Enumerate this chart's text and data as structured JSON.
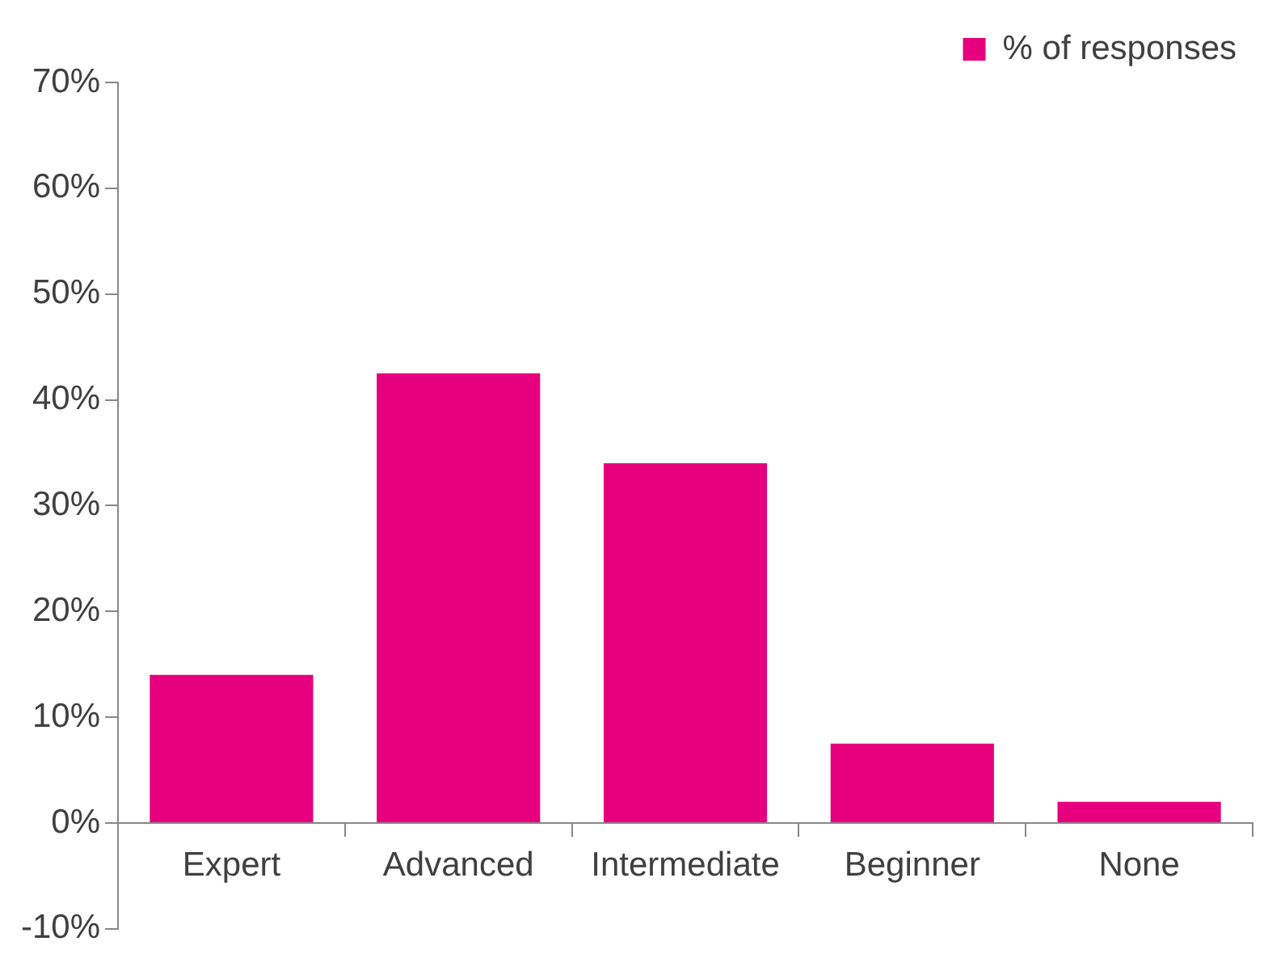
{
  "chart_data": {
    "type": "bar",
    "categories": [
      "Expert",
      "Advanced",
      "Intermediate",
      "Beginner",
      "None"
    ],
    "series": [
      {
        "name": "% of responses",
        "color": "#e6007e",
        "values": [
          14,
          42.5,
          34,
          7.5,
          2
        ]
      }
    ],
    "ylim": [
      -10,
      70
    ],
    "yticks": [
      {
        "value": -10,
        "label": "-10%"
      },
      {
        "value": 0,
        "label": "0%"
      },
      {
        "value": 10,
        "label": "10%"
      },
      {
        "value": 20,
        "label": "20%"
      },
      {
        "value": 30,
        "label": "30%"
      },
      {
        "value": 40,
        "label": "40%"
      },
      {
        "value": 50,
        "label": "50%"
      },
      {
        "value": 60,
        "label": "60%"
      },
      {
        "value": 70,
        "label": "70%"
      }
    ],
    "grid": false,
    "legend": "top right"
  }
}
